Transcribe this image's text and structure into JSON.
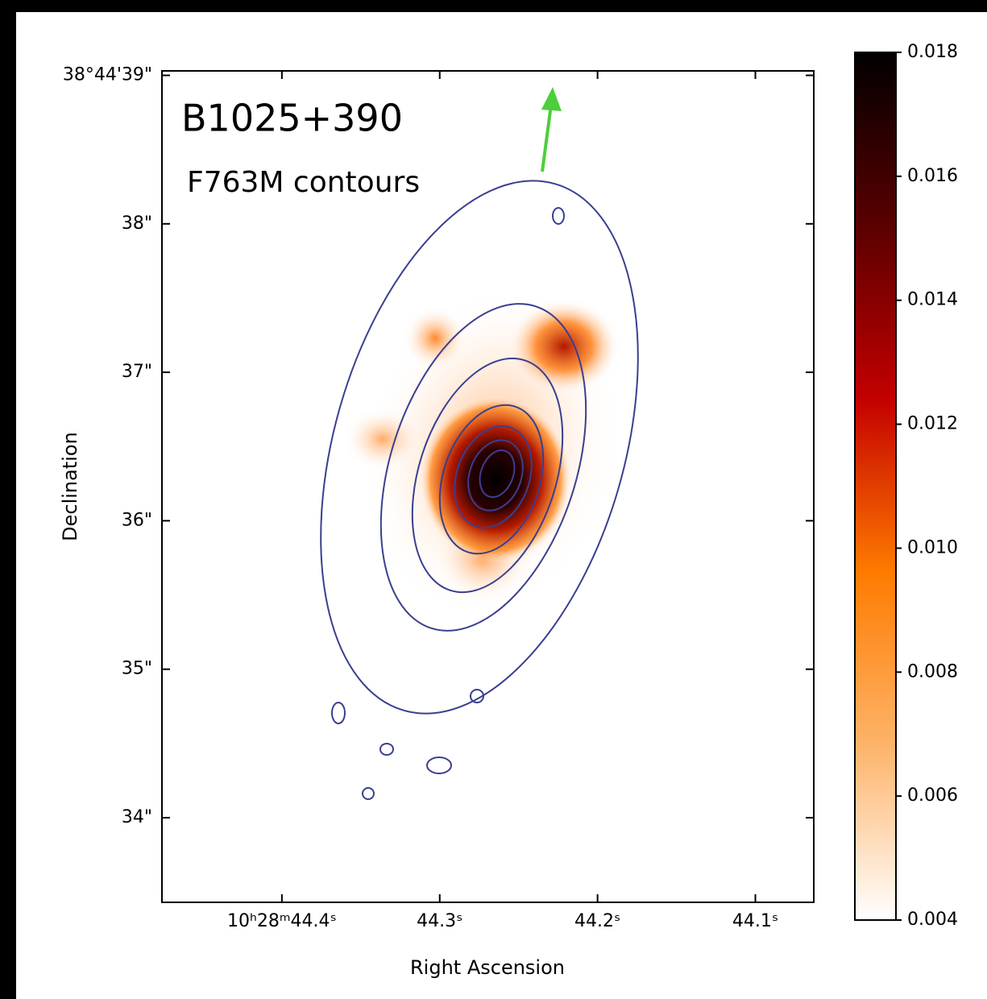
{
  "chart_data": {
    "type": "image",
    "title": "B1025+390",
    "subtitle": "F763M contours",
    "xlabel": "Right Ascension",
    "ylabel": "Declination",
    "xlim": [
      44.476,
      44.063
    ],
    "xticks": [
      {
        "value": 44.4,
        "label": "10ʰ28ᵐ44.4ˢ"
      },
      {
        "value": 44.3,
        "label": "44.3ˢ"
      },
      {
        "value": 44.2,
        "label": "44.2ˢ"
      },
      {
        "value": 44.1,
        "label": "44.1ˢ"
      }
    ],
    "ylim": [
      33.43,
      39.03
    ],
    "yticks": [
      {
        "value": 39,
        "label": "38°44'39\""
      },
      {
        "value": 38,
        "label": "38\""
      },
      {
        "value": 37,
        "label": "37\""
      },
      {
        "value": 36,
        "label": "36\""
      },
      {
        "value": 35,
        "label": "35\""
      },
      {
        "value": 34,
        "label": "34\""
      }
    ],
    "clim": [
      0.004,
      0.018
    ],
    "cticks": [
      0.004,
      0.006,
      0.008,
      0.01,
      0.012,
      0.014,
      0.016,
      0.018
    ],
    "cticks_labels": [
      "0.004",
      "0.006",
      "0.008",
      "0.010",
      "0.012",
      "0.014",
      "0.016",
      "0.018"
    ],
    "cmap_colors": [
      "#ffffff",
      "#fdb46a",
      "#ff7b00",
      "#c40000",
      "#5a0000",
      "#000000"
    ]
  }
}
